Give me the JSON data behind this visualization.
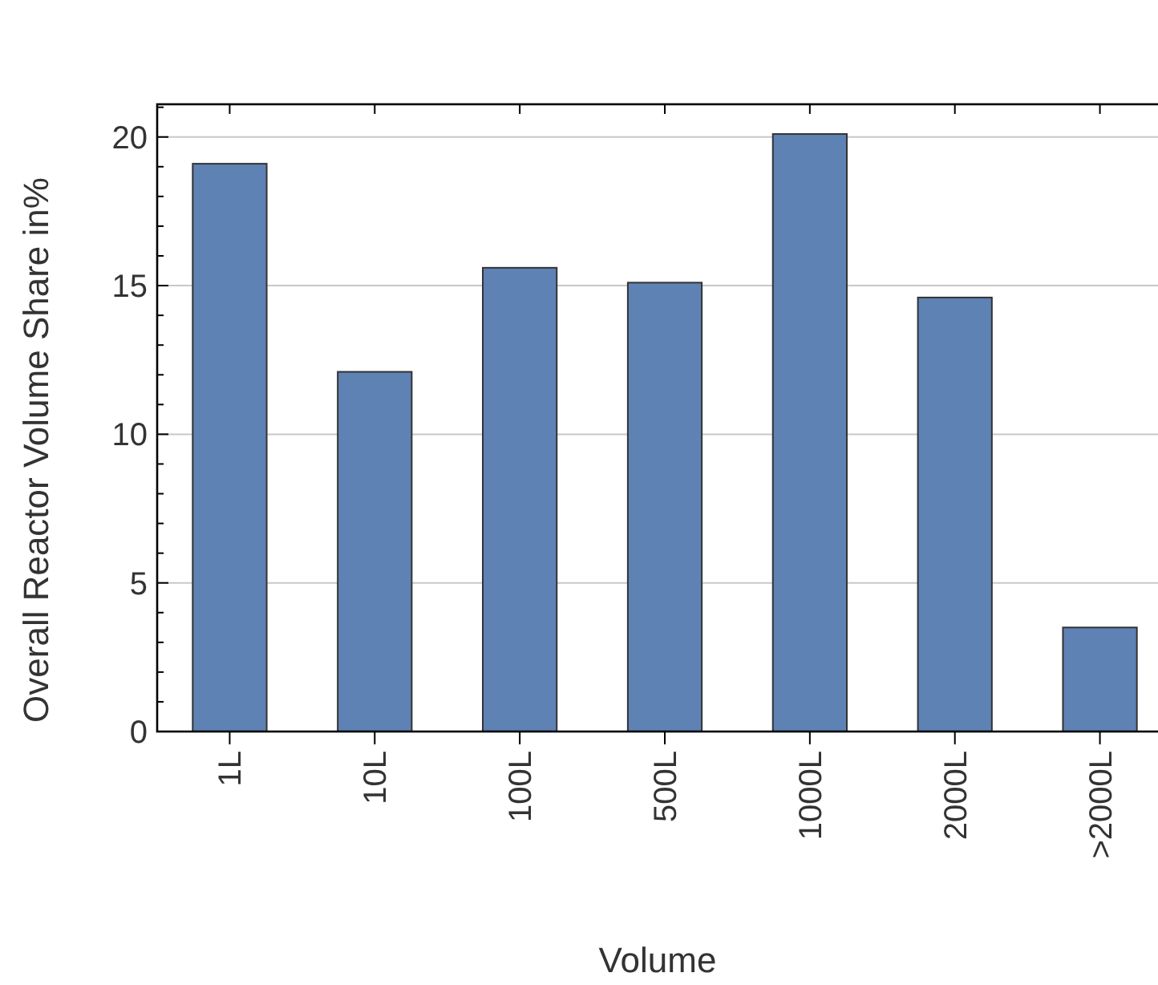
{
  "chart_data": {
    "type": "bar",
    "xlabel": "Volume",
    "ylabel": "Overall Reactor Volume Share in%",
    "categories": [
      "1L",
      "10L",
      "100L",
      "500L",
      "1000L",
      "2000L",
      ">2000L"
    ],
    "values": [
      19.1,
      12.1,
      15.6,
      15.1,
      20.1,
      14.6,
      3.5
    ],
    "color": "#5f82b5",
    "ylim": [
      0,
      21.1
    ],
    "yticks": [
      0,
      {
        "value": 1,
        "label": null
      },
      {
        "value": 2,
        "label": null
      },
      {
        "value": 3,
        "label": null
      },
      {
        "value": 4,
        "label": null
      },
      5,
      {
        "value": 6,
        "label": null
      },
      {
        "value": 7,
        "label": null
      },
      {
        "value": 8,
        "label": null
      },
      {
        "value": 9,
        "label": null
      },
      10,
      {
        "value": 11,
        "label": null
      },
      {
        "value": 12,
        "label": null
      },
      {
        "value": 13,
        "label": null
      },
      {
        "value": 14,
        "label": null
      },
      15,
      {
        "value": 16,
        "label": null
      },
      {
        "value": 17,
        "label": null
      },
      {
        "value": 18,
        "label": null
      },
      {
        "value": 19,
        "label": null
      },
      20,
      {
        "value": 21,
        "label": null
      }
    ],
    "grid": "y"
  }
}
